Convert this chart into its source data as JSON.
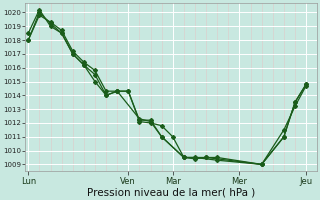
{
  "background_color": "#c8e8e0",
  "grid_major_color": "#ffffff",
  "grid_minor_color": "#e0c8c8",
  "line_color": "#1a5c1a",
  "ylim": [
    1008.5,
    1020.7
  ],
  "yticks": [
    1009,
    1010,
    1011,
    1012,
    1013,
    1014,
    1015,
    1016,
    1017,
    1018,
    1019,
    1020
  ],
  "xlabel": "Pression niveau de la mer( hPa )",
  "xlabel_fontsize": 7.5,
  "xtick_labels": [
    "Lun",
    "Ven",
    "Mar",
    "Mer",
    "Jeu"
  ],
  "xtick_positions": [
    0,
    9,
    13,
    19,
    25
  ],
  "xlim": [
    -0.3,
    26.0
  ],
  "series": [
    [
      1018.0,
      1020.0,
      1019.2,
      1018.5,
      1017.0,
      1016.2,
      1015.5,
      1014.0,
      1014.3,
      1014.3,
      1012.1,
      1012.0,
      1011.8,
      1011.0,
      1009.5,
      1009.5,
      1009.5,
      1009.0,
      1011.0,
      1013.5,
      1014.8
    ],
    [
      1018.5,
      1020.2,
      1019.0,
      1018.5,
      1017.0,
      1016.2,
      1015.0,
      1014.0,
      1014.3,
      1014.3,
      1012.2,
      1012.2,
      1011.0,
      1009.5,
      1009.5,
      1009.3,
      1009.0,
      1011.5,
      1013.2,
      1014.7
    ],
    [
      1018.0,
      1019.8,
      1019.3,
      1018.7,
      1017.2,
      1016.4,
      1015.8,
      1014.3,
      1014.3,
      1012.3,
      1012.1,
      1011.0,
      1009.5,
      1009.4,
      1009.5,
      1009.0,
      1011.0,
      1013.5,
      1014.8
    ]
  ],
  "x_series": [
    [
      0,
      1,
      2,
      3,
      4,
      5,
      6,
      7,
      8,
      9,
      10,
      11,
      12,
      13,
      14,
      16,
      17,
      21,
      23,
      24,
      25
    ],
    [
      0,
      1,
      2,
      3,
      4,
      5,
      6,
      7,
      8,
      9,
      10,
      11,
      12,
      14,
      15,
      17,
      21,
      23,
      24,
      25
    ],
    [
      0,
      1,
      2,
      3,
      4,
      5,
      6,
      7,
      8,
      10,
      11,
      12,
      14,
      15,
      16,
      21,
      23,
      24,
      25
    ]
  ]
}
